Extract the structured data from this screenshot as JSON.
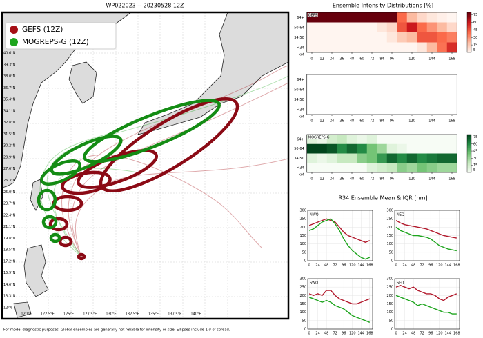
{
  "title": "WP022023 -- 20230528 12Z",
  "legend": [
    {
      "name": "GEFS (12Z)",
      "color": "#a50f15"
    },
    {
      "name": "MOGREPS-G (12Z)",
      "color": "#1ea51e"
    }
  ],
  "lat_labels": [
    "40.6°N",
    "39.3°N",
    "38.0°N",
    "36.7°N",
    "35.4°N",
    "34.1°N",
    "32.8°N",
    "31.5°N",
    "30.2°N",
    "28.9°N",
    "27.6°N",
    "26.3°N",
    "25.0°N",
    "23.7°N",
    "22.4°N",
    "21.1°N",
    "19.8°N",
    "18.5°N",
    "17.2°N",
    "15.9°N",
    "14.6°N",
    "13.3°N",
    "12°N"
  ],
  "lon_labels": [
    "120°E",
    "122.5°E",
    "125°E",
    "127.5°E",
    "130°E",
    "132.5°E",
    "135°E",
    "137.5°E",
    "140°E"
  ],
  "footer": "For model diagnostic purposes. Global ensembles are generally not reliable for intensity or size. Ellipses include 1 σ of spread.",
  "intensity": {
    "title": "Ensemble Intensity Distributions [%]",
    "rows": [
      "64+",
      "50-64",
      "34-50",
      "<34"
    ],
    "unit": "kot",
    "hours": [
      0,
      12,
      24,
      36,
      48,
      60,
      72,
      84,
      96,
      108,
      120,
      132,
      144,
      156,
      168
    ],
    "xticks": [
      0,
      12,
      24,
      36,
      48,
      60,
      72,
      84,
      96,
      120,
      144,
      168
    ],
    "clim": [
      0,
      80
    ],
    "cticks": [
      75,
      60,
      45,
      30,
      15,
      5
    ],
    "panels": [
      {
        "label": "GEFS",
        "colormap": "reds",
        "values": [
          [
            100,
            100,
            100,
            100,
            100,
            100,
            100,
            95,
            85,
            40,
            20,
            10,
            5,
            2,
            0
          ],
          [
            0,
            0,
            0,
            0,
            0,
            0,
            0,
            5,
            10,
            45,
            60,
            40,
            30,
            20,
            10
          ],
          [
            0,
            0,
            0,
            0,
            0,
            0,
            0,
            0,
            5,
            15,
            20,
            45,
            45,
            40,
            35
          ],
          [
            0,
            0,
            0,
            0,
            0,
            0,
            0,
            0,
            0,
            0,
            0,
            5,
            20,
            38,
            55
          ]
        ]
      },
      {},
      {
        "label": "MOGREPS-G",
        "colormap": "greens",
        "values": [
          [
            10,
            5,
            15,
            20,
            10,
            5,
            10,
            0,
            0,
            0,
            0,
            0,
            0,
            0,
            0
          ],
          [
            80,
            90,
            75,
            60,
            70,
            60,
            40,
            30,
            10,
            5,
            0,
            0,
            0,
            0,
            0
          ],
          [
            10,
            5,
            10,
            20,
            20,
            35,
            40,
            55,
            70,
            60,
            70,
            60,
            65,
            70,
            70
          ],
          [
            0,
            0,
            0,
            0,
            0,
            0,
            10,
            15,
            20,
            35,
            30,
            40,
            35,
            30,
            30
          ]
        ]
      }
    ]
  },
  "r34": {
    "title": "R34 Ensemble Mean & IQR [nm]",
    "xlim": [
      -4,
      176
    ],
    "xticks": [
      0,
      24,
      48,
      72,
      96,
      120,
      144,
      168
    ],
    "ylim": [
      0,
      300
    ],
    "yticks": [
      0,
      50,
      100,
      150,
      200,
      250,
      300
    ],
    "hours": [
      0,
      12,
      24,
      36,
      48,
      60,
      72,
      84,
      96,
      108,
      120,
      132,
      144,
      156,
      168
    ],
    "panels": [
      {
        "label": "NWQ",
        "series": [
          {
            "name": "GEFS",
            "color": "#b2182b",
            "values": [
              210,
              220,
              230,
              240,
              250,
              240,
              230,
              200,
              170,
              150,
              140,
              130,
              120,
              110,
              120
            ]
          },
          {
            "name": "MOGREPS-G",
            "color": "#1ea51e",
            "values": [
              180,
              190,
              210,
              230,
              240,
              250,
              220,
              180,
              130,
              90,
              60,
              40,
              20,
              10,
              20
            ]
          }
        ]
      },
      {
        "label": "NEQ",
        "series": [
          {
            "name": "GEFS",
            "color": "#b2182b",
            "values": [
              240,
              225,
              215,
              210,
              205,
              200,
              195,
              190,
              180,
              170,
              160,
              150,
              145,
              140,
              135
            ]
          },
          {
            "name": "MOGREPS-G",
            "color": "#1ea51e",
            "values": [
              200,
              180,
              170,
              160,
              150,
              150,
              145,
              140,
              130,
              110,
              90,
              80,
              70,
              65,
              60
            ]
          }
        ]
      },
      {
        "label": "SWQ",
        "series": [
          {
            "name": "GEFS",
            "color": "#b2182b",
            "values": [
              210,
              200,
              210,
              200,
              230,
              230,
              200,
              180,
              170,
              160,
              150,
              150,
              160,
              170,
              180
            ]
          },
          {
            "name": "MOGREPS-G",
            "color": "#1ea51e",
            "values": [
              190,
              180,
              170,
              160,
              170,
              160,
              140,
              130,
              120,
              100,
              80,
              70,
              60,
              50,
              40
            ]
          }
        ]
      },
      {
        "label": "SEQ",
        "series": [
          {
            "name": "GEFS",
            "color": "#b2182b",
            "values": [
              250,
              260,
              250,
              240,
              250,
              230,
              220,
              210,
              210,
              200,
              180,
              170,
              190,
              200,
              210
            ]
          },
          {
            "name": "MOGREPS-G",
            "color": "#1ea51e",
            "values": [
              200,
              190,
              180,
              170,
              160,
              140,
              150,
              140,
              130,
              120,
              110,
              100,
              100,
              90,
              90
            ]
          }
        ]
      }
    ]
  }
}
